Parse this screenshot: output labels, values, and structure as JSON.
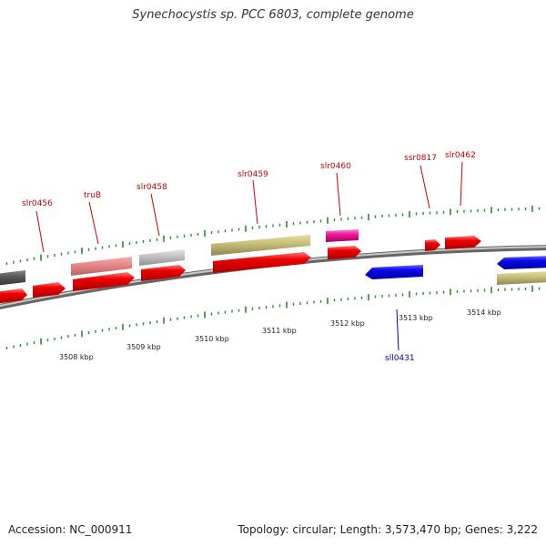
{
  "title": "Synechocystis sp. PCC 6803, complete genome",
  "footer": {
    "accession": "Accession: NC_000911",
    "summary": "Topology: circular; Length: 3,573,470 bp; Genes: 3,222"
  },
  "colors": {
    "forward_label": "#cc0000",
    "reverse_label": "#0000aa",
    "tick": "#2a8a2a",
    "backbone": "#888888"
  },
  "kbp_labels": [
    "3508 kbp",
    "3509 kbp",
    "3510 kbp",
    "3511 kbp",
    "3512 kbp",
    "3513 kbp",
    "3514 kbp"
  ],
  "gene_labels": {
    "slr0456": "slr0456",
    "truB": "truB",
    "slr0458": "slr0458",
    "slr0459": "slr0459",
    "slr0460": "slr0460",
    "ssr0817": "ssr0817",
    "slr0462": "slr0462",
    "sll0431": "sll0431"
  }
}
